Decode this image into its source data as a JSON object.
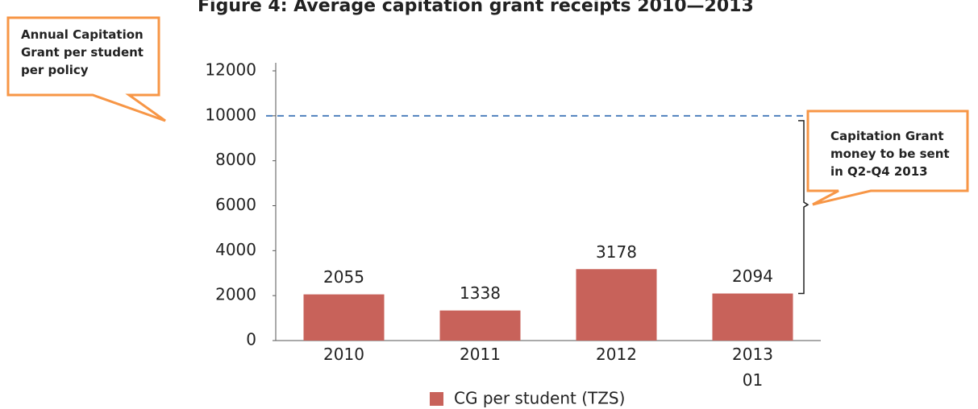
{
  "chart_data": {
    "type": "bar",
    "title": "Figure 4: Average capitation grant receipts 2010—2013",
    "categories": [
      "2010",
      "2011",
      "2012",
      "2013\n01"
    ],
    "series": [
      {
        "name": "CG per student (TZS)",
        "color": "#c8625a",
        "values": [
          2055,
          1338,
          3178,
          2094
        ]
      }
    ],
    "ylim": [
      0,
      12000
    ],
    "yticks": [
      0,
      2000,
      4000,
      6000,
      8000,
      10000,
      12000
    ],
    "reference_line": {
      "value": 10000,
      "color": "#4f81bd"
    },
    "annotations": [
      "Annual Capitation Grant per student per policy",
      "Capitation Grant money to be sent in Q2-Q4 2013"
    ],
    "legend": "bottom"
  }
}
